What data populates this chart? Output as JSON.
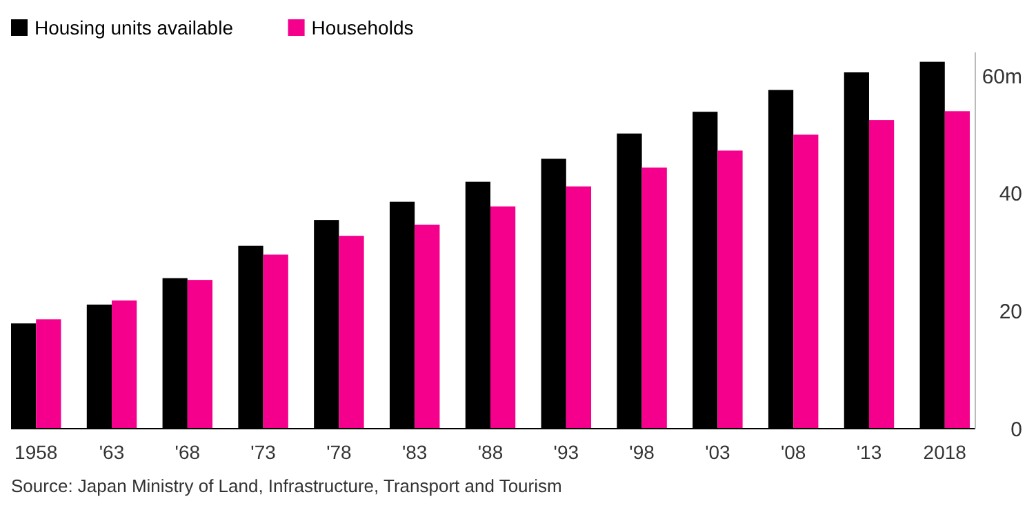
{
  "chart_data": {
    "type": "bar",
    "categories": [
      "1958",
      "'63",
      "'68",
      "'73",
      "'78",
      "'83",
      "'88",
      "'93",
      "'98",
      "'03",
      "'08",
      "'13",
      "2018"
    ],
    "series": [
      {
        "name": "Housing units available",
        "color": "#000000",
        "values": [
          17.9,
          21.1,
          25.6,
          31.1,
          35.5,
          38.6,
          42.0,
          45.9,
          50.2,
          53.9,
          57.6,
          60.6,
          62.4
        ]
      },
      {
        "name": "Households",
        "color": "#f5008c",
        "values": [
          18.6,
          21.8,
          25.3,
          29.6,
          32.8,
          34.7,
          37.8,
          41.2,
          44.4,
          47.3,
          50.0,
          52.5,
          54.0
        ]
      }
    ],
    "ylim": [
      0,
      64
    ],
    "yticks": [
      0,
      20,
      40,
      {
        "value": 60,
        "label": "60m"
      }
    ],
    "grid": false,
    "legend": "top left",
    "annotations": [
      "Source: Japan Ministry of Land, Infrastructure, Transport and Tourism"
    ]
  }
}
